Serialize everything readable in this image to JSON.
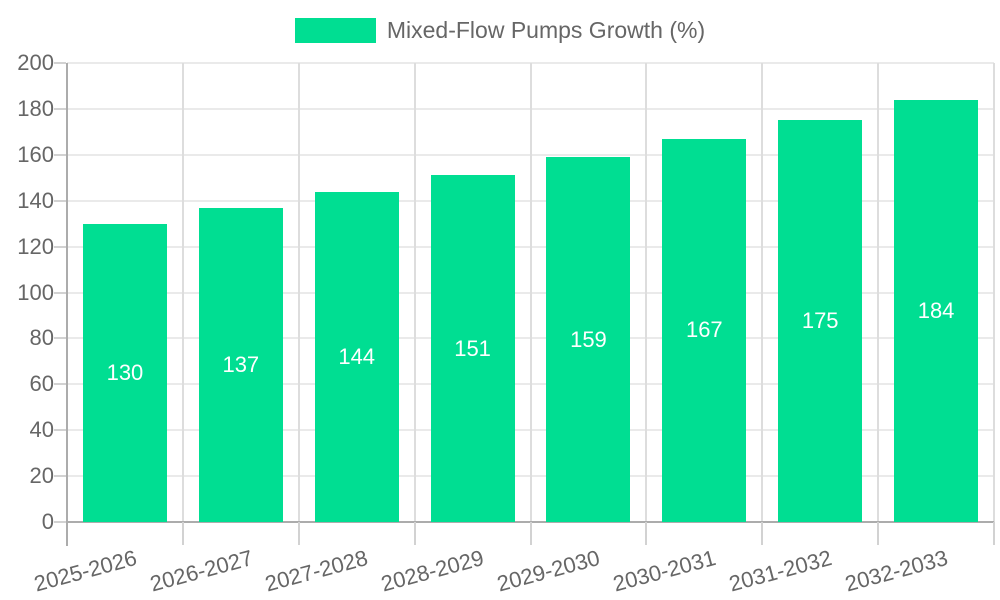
{
  "legend": {
    "label": "Mixed-Flow Pumps Growth (%)",
    "swatch_color": "#00DE92"
  },
  "chart_data": {
    "type": "bar",
    "title": "",
    "categories": [
      "2025-2026",
      "2026-2027",
      "2027-2028",
      "2028-2029",
      "2029-2030",
      "2030-2031",
      "2031-2032",
      "2032-2033"
    ],
    "series": [
      {
        "name": "Mixed-Flow Pumps Growth (%)",
        "values": [
          130,
          137,
          144,
          151,
          159,
          167,
          175,
          184
        ]
      }
    ],
    "value_labels": [
      "130",
      "137",
      "144",
      "151",
      "159",
      "167",
      "175",
      "184"
    ],
    "ytick_labels": [
      "0",
      "20",
      "40",
      "60",
      "80",
      "100",
      "120",
      "140",
      "160",
      "180",
      "200"
    ],
    "ylim": [
      0,
      200
    ],
    "ytick_step": 20,
    "xlabel": "",
    "ylabel": "",
    "grid": "both",
    "legend_position": "top-center",
    "bar_color": "#00DE92",
    "value_label_color": "#FFFFFF",
    "value_label_position": "middle-of-bar",
    "x_tick_rotation_deg": -15
  },
  "colors": {
    "background": "#FFFFFF",
    "axis_line": "#ACACAC",
    "h_gridline": "#EAEAEA",
    "v_gridline": "#DDDDDD",
    "tick_mark": "#D2D2D2",
    "tick_text": "#666666",
    "legend_text": "#666666"
  }
}
